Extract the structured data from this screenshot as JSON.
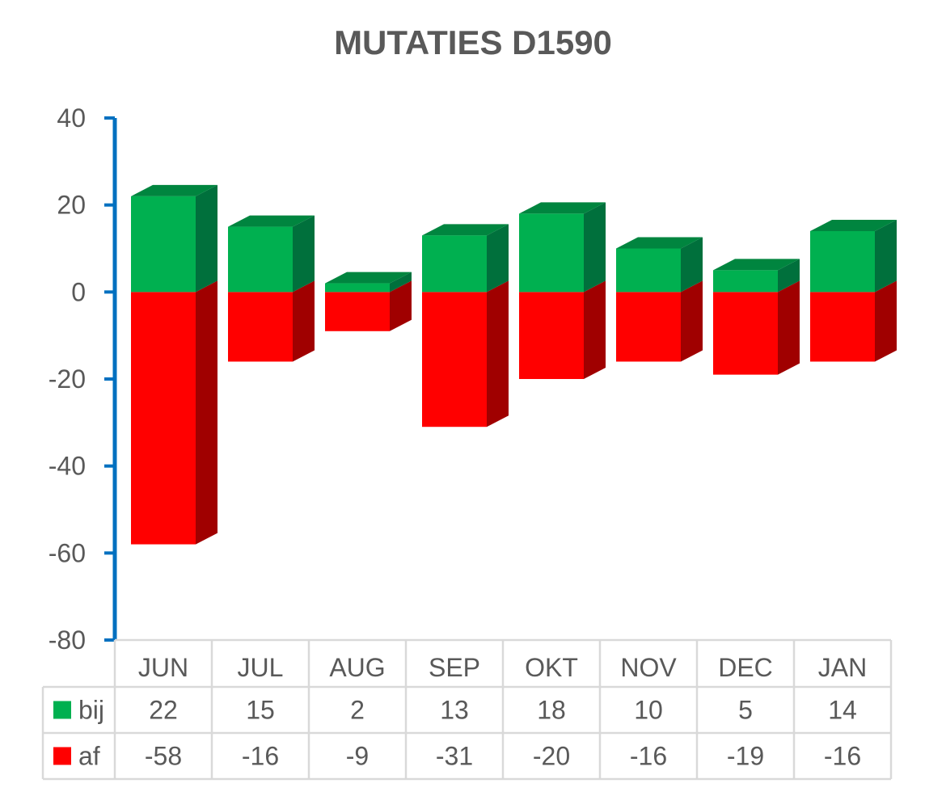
{
  "chart_data": {
    "type": "bar",
    "stacked": true,
    "three_d": true,
    "title": "MUTATIES D1590",
    "categories": [
      "JUN",
      "JUL",
      "AUG",
      "SEP",
      "OKT",
      "NOV",
      "DEC",
      "JAN"
    ],
    "series": [
      {
        "name": "bij",
        "values": [
          22,
          15,
          2,
          13,
          18,
          10,
          5,
          14
        ],
        "color": "#00B050",
        "side_color": "#00703C",
        "top_color": "#00853F"
      },
      {
        "name": "af",
        "values": [
          -58,
          -16,
          -9,
          -31,
          -20,
          -16,
          -19,
          -16
        ],
        "color": "#FF0000",
        "side_color": "#A00000",
        "top_color": "#C00000"
      }
    ],
    "ylim": [
      -80,
      40
    ],
    "yticks": [
      "40",
      "20",
      "0",
      "-20",
      "-40",
      "-60",
      "-80"
    ],
    "axis_color": "#0070C0",
    "grid": false,
    "legend": "data-table"
  }
}
